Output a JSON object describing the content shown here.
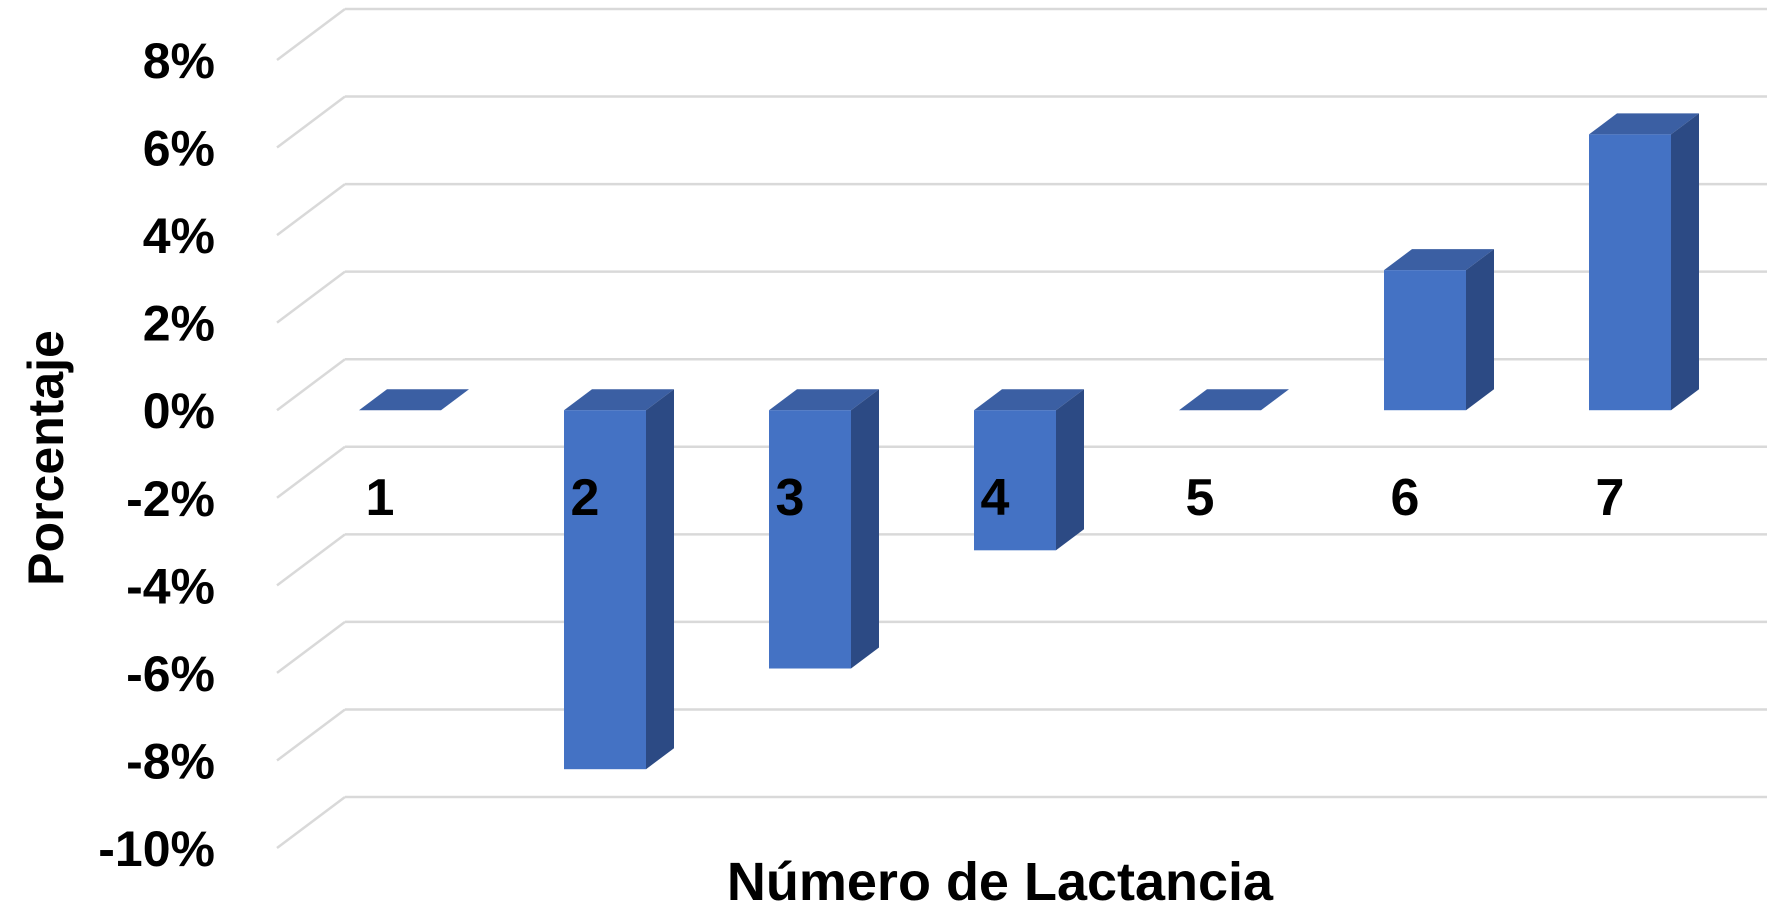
{
  "chart_data": {
    "type": "bar",
    "style": "3d-column",
    "title": "",
    "xlabel": "Número de Lactancia",
    "ylabel": "Porcentaje",
    "categories": [
      "1",
      "2",
      "3",
      "4",
      "5",
      "6",
      "7"
    ],
    "values": [
      0.0,
      -8.2,
      -5.9,
      -3.2,
      0.0,
      3.2,
      6.3
    ],
    "y_unit": "%",
    "ylim": [
      -10,
      8
    ],
    "yticks": [
      8,
      6,
      4,
      2,
      0,
      -2,
      -4,
      -6,
      -8,
      -10
    ],
    "ytick_labels": [
      "8%",
      "6%",
      "4%",
      "2%",
      "0%",
      "-2%",
      "-4%",
      "-6%",
      "-8%",
      "-10%"
    ],
    "grid": true,
    "legend": "none",
    "colors": {
      "bar_front": "#4472C4",
      "bar_side": "#2C4A84",
      "bar_top": "#3B5FA3",
      "grid": "#D9D9D9",
      "text": "#000000"
    }
  }
}
